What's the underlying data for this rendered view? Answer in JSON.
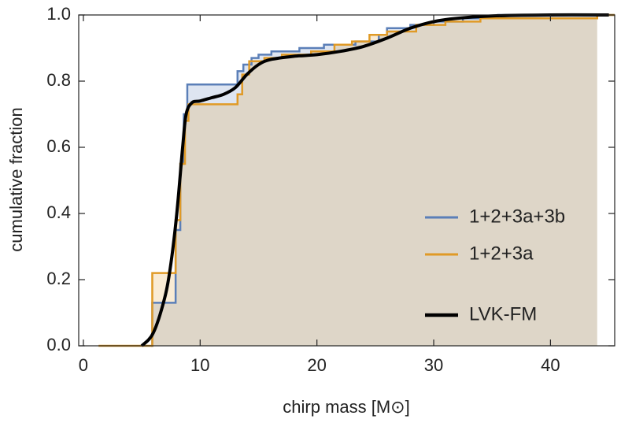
{
  "chart_data": {
    "type": "step",
    "xlabel": "chirp mass [M⊙]",
    "ylabel": "cumulative fraction",
    "xlim": [
      -0.4,
      45.5
    ],
    "ylim": [
      0,
      1.0
    ],
    "xticks": [
      0,
      10,
      20,
      30,
      40
    ],
    "yticks": [
      {
        "value": 0,
        "label": "0.0"
      },
      0.2,
      0.4,
      0.6,
      0.8,
      {
        "value": 1,
        "label": "1.0"
      }
    ],
    "legend": "right",
    "series": [
      {
        "name": "1+2+3a+3b",
        "color": "#5b7fb8",
        "shape": "step",
        "x": [
          5.8,
          5.9,
          7.9,
          8.3,
          8.6,
          8.9,
          13.2,
          13.7,
          14.4,
          15.0,
          16.1,
          18.5,
          20.6,
          23.3,
          25.3,
          26.0,
          28.0,
          30.0,
          32.5,
          35.5,
          44.0
        ],
        "values": [
          0,
          0.13,
          0.35,
          0.55,
          0.7,
          0.79,
          0.83,
          0.85,
          0.87,
          0.88,
          0.89,
          0.9,
          0.91,
          0.92,
          0.94,
          0.96,
          0.97,
          0.98,
          0.99,
          1.0,
          1.0
        ]
      },
      {
        "name": "1+2+3a",
        "color": "#e09a26",
        "shape": "step",
        "x": [
          1.3,
          5.9,
          7.9,
          8.3,
          8.7,
          9.0,
          13.2,
          13.6,
          14.2,
          15.5,
          17.0,
          19.5,
          21.5,
          23.0,
          24.5,
          26.0,
          28.5,
          31.0,
          34.0,
          44.0
        ],
        "values": [
          0,
          0.22,
          0.38,
          0.55,
          0.68,
          0.73,
          0.76,
          0.82,
          0.86,
          0.87,
          0.88,
          0.89,
          0.91,
          0.92,
          0.94,
          0.95,
          0.97,
          0.98,
          0.99,
          1.0
        ]
      },
      {
        "name": "LVK-FM",
        "color": "#000000",
        "shape": "smooth",
        "x": [
          5,
          6,
          7,
          7.5,
          8,
          8.5,
          8.8,
          9.3,
          10,
          11,
          12,
          13,
          14,
          15,
          16,
          18,
          20,
          22,
          24,
          26,
          28,
          30,
          32,
          35,
          40,
          45
        ],
        "values": [
          0,
          0.04,
          0.15,
          0.25,
          0.4,
          0.6,
          0.7,
          0.735,
          0.74,
          0.75,
          0.76,
          0.78,
          0.82,
          0.85,
          0.865,
          0.875,
          0.88,
          0.89,
          0.905,
          0.93,
          0.96,
          0.98,
          0.99,
          0.997,
          1.0,
          1.0
        ]
      }
    ]
  }
}
